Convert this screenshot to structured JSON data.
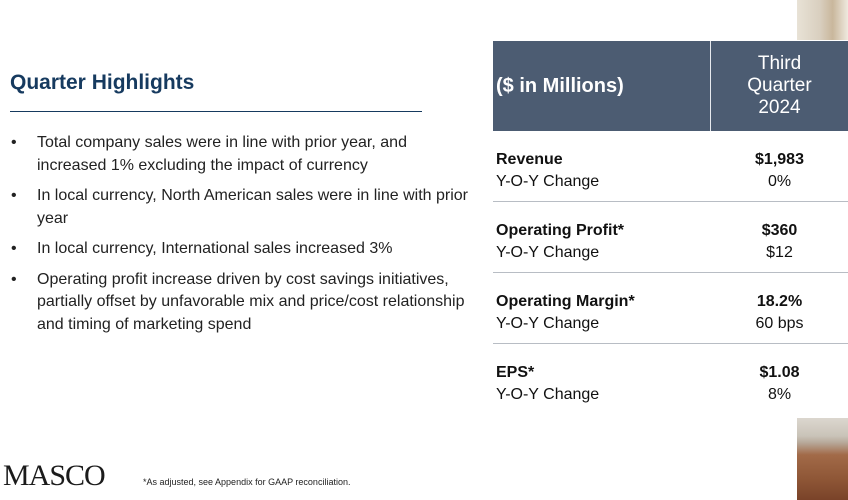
{
  "title": "Quarter Highlights",
  "bullets": [
    "Total company sales were in line with prior year, and increased 1% excluding the impact of currency",
    "In local currency, North American sales were in line with prior year",
    "In local currency, International sales increased 3%",
    "Operating profit increase driven by cost savings initiatives, partially offset by unfavorable mix and price/cost relationship and timing of marketing spend"
  ],
  "bullet_symbol": "•",
  "table": {
    "header_left": "($ in Millions)",
    "header_right": [
      "Third",
      "Quarter",
      "2024"
    ],
    "rows": [
      {
        "label": "Revenue",
        "sub_label": "Y-O-Y Change",
        "value": "$1,983",
        "sub_value": "0%"
      },
      {
        "label": "Operating Profit*",
        "sub_label": "Y-O-Y Change",
        "value": "$360",
        "sub_value": "$12"
      },
      {
        "label": "Operating Margin*",
        "sub_label": "Y-O-Y Change",
        "value": "18.2%",
        "sub_value": "60 bps"
      },
      {
        "label": "EPS*",
        "sub_label": "Y-O-Y Change",
        "value": "$1.08",
        "sub_value": "8%"
      }
    ]
  },
  "logo": "MASCO",
  "footnote": "*As adjusted, see Appendix for GAAP reconciliation.",
  "colors": {
    "title": "#163a5f",
    "header_bg": "#4c5c72"
  }
}
